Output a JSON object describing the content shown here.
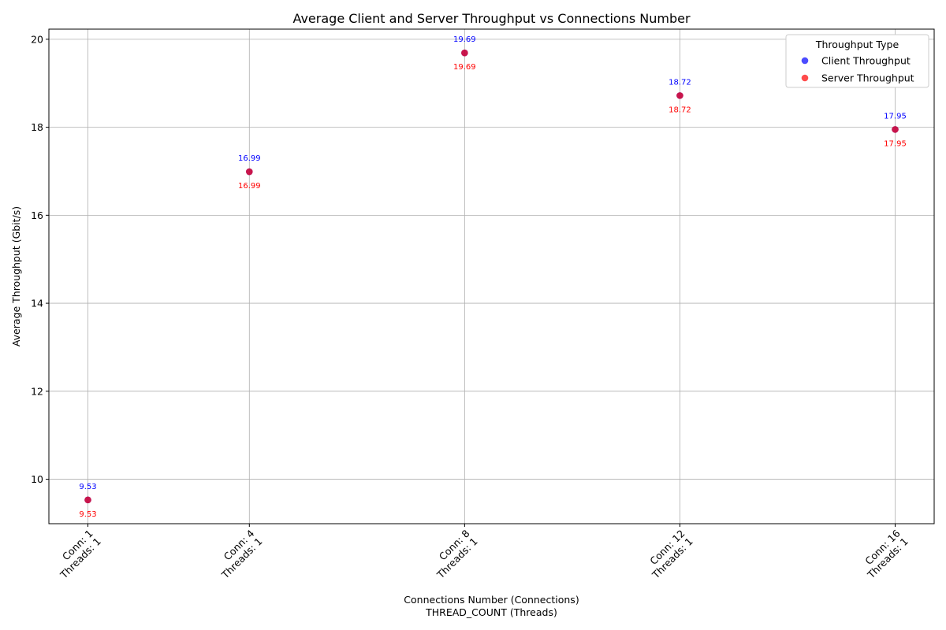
{
  "chart_data": {
    "type": "scatter",
    "title": "Average Client and Server Throughput vs Connections Number",
    "xlabel": "Connections Number (Connections)",
    "xlabel2": "THREAD_COUNT (Threads)",
    "ylabel": "Average Throughput (Gbit/s)",
    "x": [
      1,
      4,
      8,
      12,
      16
    ],
    "x_tick_labels": [
      [
        "Conn: 1",
        "Threads: 1"
      ],
      [
        "Conn: 4",
        "Threads: 1"
      ],
      [
        "Conn: 8",
        "Threads: 1"
      ],
      [
        "Conn: 12",
        "Threads: 1"
      ],
      [
        "Conn: 16",
        "Threads: 1"
      ]
    ],
    "xlim": [
      0.275,
      16.725
    ],
    "ylim": [
      8.99,
      20.23
    ],
    "yticks": [
      10,
      12,
      14,
      16,
      18,
      20
    ],
    "grid": true,
    "legend": {
      "title": "Throughput Type",
      "placement": "top-right"
    },
    "series": [
      {
        "name": "Client Throughput",
        "color": "#0000ff",
        "values": [
          9.53,
          16.99,
          19.69,
          18.72,
          17.95
        ],
        "labels": [
          "9.53",
          "16.99",
          "19.69",
          "18.72",
          "17.95"
        ]
      },
      {
        "name": "Server Throughput",
        "color": "#ff0000",
        "values": [
          9.53,
          16.99,
          19.69,
          18.72,
          17.95
        ],
        "labels": [
          "9.53",
          "16.99",
          "19.69",
          "18.72",
          "17.95"
        ]
      }
    ]
  }
}
